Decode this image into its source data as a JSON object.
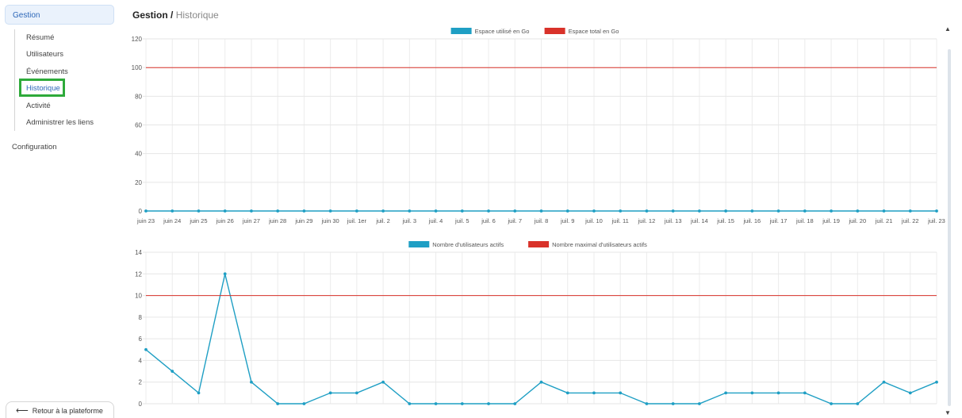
{
  "sidebar": {
    "section_label": "Gestion",
    "items": [
      {
        "label": "Résumé"
      },
      {
        "label": "Utilisateurs"
      },
      {
        "label": "Événements"
      },
      {
        "label": "Historique",
        "active": true
      },
      {
        "label": "Activité"
      },
      {
        "label": "Administrer les liens"
      }
    ],
    "config_label": "Configuration",
    "back_label": "Retour à la plateforme"
  },
  "breadcrumb": {
    "part1": "Gestion",
    "separator": "/",
    "part2": "Historique"
  },
  "colors": {
    "series_primary": "#1f9fc4",
    "series_limit": "#d9322a",
    "accent": "#2d67b8",
    "highlight": "#2eaa3a"
  },
  "chart_data": [
    {
      "type": "line",
      "categories": [
        "juin 23",
        "juin 24",
        "juin 25",
        "juin 26",
        "juin 27",
        "juin 28",
        "juin 29",
        "juin 30",
        "juil. 1er",
        "juil. 2",
        "juil. 3",
        "juil. 4",
        "juil. 5",
        "juil. 6",
        "juil. 7",
        "juil. 8",
        "juil. 9",
        "juil. 10",
        "juil. 11",
        "juil. 12",
        "juil. 13",
        "juil. 14",
        "juil. 15",
        "juil. 16",
        "juil. 17",
        "juil. 18",
        "juil. 19",
        "juil. 20",
        "juil. 21",
        "juil. 22",
        "juil. 23"
      ],
      "series": [
        {
          "name": "Espace utilisé en Go",
          "color": "#1f9fc4",
          "markers": true,
          "values": [
            0,
            0,
            0,
            0,
            0,
            0,
            0,
            0,
            0,
            0,
            0,
            0,
            0,
            0,
            0,
            0,
            0,
            0,
            0,
            0,
            0,
            0,
            0,
            0,
            0,
            0,
            0,
            0,
            0,
            0,
            0
          ]
        },
        {
          "name": "Espace total en Go",
          "color": "#d9322a",
          "markers": false,
          "values": [
            100,
            100,
            100,
            100,
            100,
            100,
            100,
            100,
            100,
            100,
            100,
            100,
            100,
            100,
            100,
            100,
            100,
            100,
            100,
            100,
            100,
            100,
            100,
            100,
            100,
            100,
            100,
            100,
            100,
            100,
            100
          ]
        }
      ],
      "ylim": [
        0,
        120
      ],
      "yticks": [
        0,
        20,
        40,
        60,
        80,
        100,
        120
      ],
      "grid": true,
      "legend": "top-center",
      "show_x_labels": true
    },
    {
      "type": "line",
      "categories": [
        "juin 23",
        "juin 24",
        "juin 25",
        "juin 26",
        "juin 27",
        "juin 28",
        "juin 29",
        "juin 30",
        "juil. 1er",
        "juil. 2",
        "juil. 3",
        "juil. 4",
        "juil. 5",
        "juil. 6",
        "juil. 7",
        "juil. 8",
        "juil. 9",
        "juil. 10",
        "juil. 11",
        "juil. 12",
        "juil. 13",
        "juil. 14",
        "juil. 15",
        "juil. 16",
        "juil. 17",
        "juil. 18",
        "juil. 19",
        "juil. 20",
        "juil. 21",
        "juil. 22",
        "juil. 23"
      ],
      "series": [
        {
          "name": "Nombre d'utilisateurs actifs",
          "color": "#1f9fc4",
          "markers": true,
          "values": [
            5,
            3,
            1,
            12,
            2,
            0,
            0,
            1,
            1,
            2,
            0,
            0,
            0,
            0,
            0,
            2,
            1,
            1,
            1,
            0,
            0,
            0,
            1,
            1,
            1,
            1,
            0,
            0,
            2,
            1,
            2
          ]
        },
        {
          "name": "Nombre maximal d'utilisateurs actifs",
          "color": "#d9322a",
          "markers": false,
          "values": [
            10,
            10,
            10,
            10,
            10,
            10,
            10,
            10,
            10,
            10,
            10,
            10,
            10,
            10,
            10,
            10,
            10,
            10,
            10,
            10,
            10,
            10,
            10,
            10,
            10,
            10,
            10,
            10,
            10,
            10,
            10
          ]
        }
      ],
      "ylim": [
        0,
        14
      ],
      "yticks": [
        0,
        2,
        4,
        6,
        8,
        10,
        12,
        14
      ],
      "grid": true,
      "legend": "top-center",
      "show_x_labels": false
    }
  ]
}
